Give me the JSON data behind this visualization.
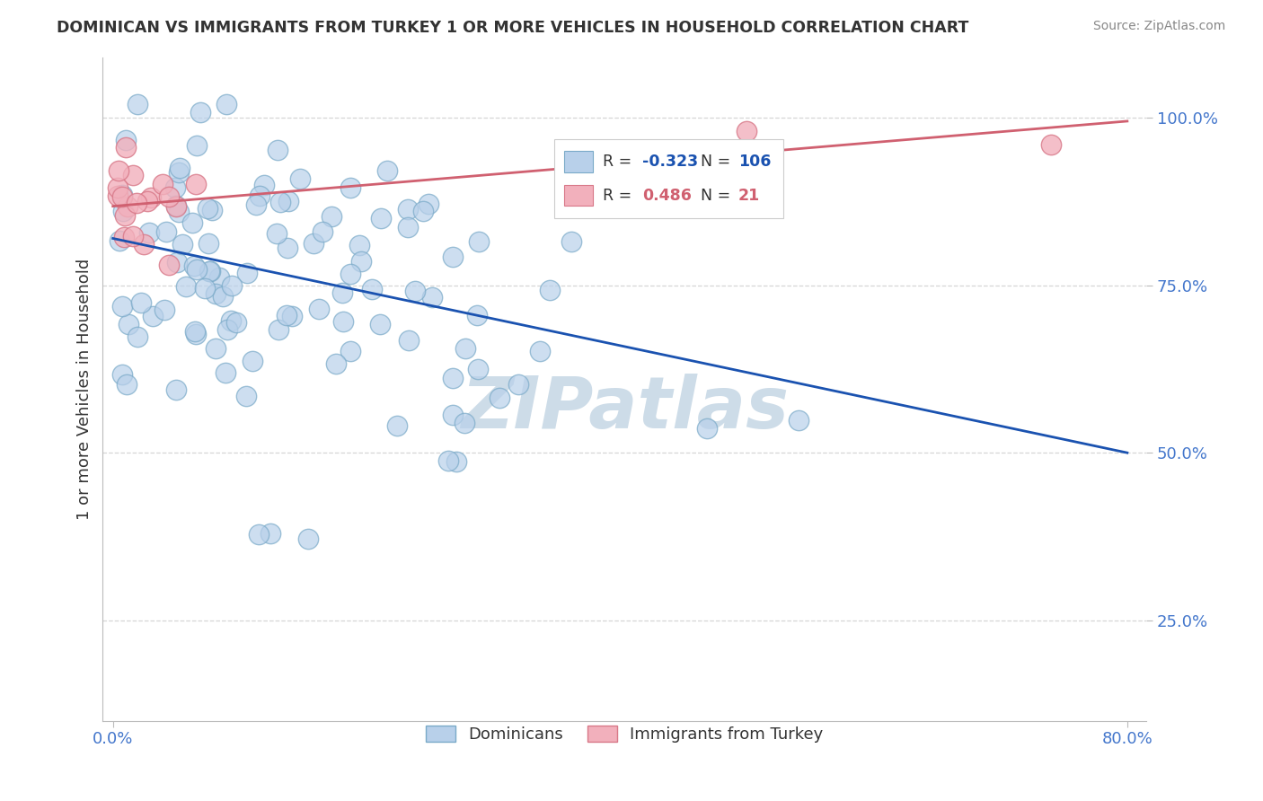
{
  "title": "DOMINICAN VS IMMIGRANTS FROM TURKEY 1 OR MORE VEHICLES IN HOUSEHOLD CORRELATION CHART",
  "source": "Source: ZipAtlas.com",
  "ylabel": "1 or more Vehicles in Household",
  "dominican_color": "#b8d0ea",
  "dominican_edge": "#7aaac8",
  "turkey_color": "#f2b0bc",
  "turkey_edge": "#d87888",
  "line_blue": "#1a52b0",
  "line_pink": "#d06070",
  "watermark_color": "#cddce8",
  "blue_line_x0": 0.0,
  "blue_line_x1": 0.8,
  "blue_line_y0": 0.82,
  "blue_line_y1": 0.5,
  "pink_line_x0": 0.0,
  "pink_line_x1": 0.8,
  "pink_line_y0": 0.868,
  "pink_line_y1": 0.995,
  "xlim_min": -0.008,
  "xlim_max": 0.815,
  "ylim_min": 0.1,
  "ylim_max": 1.09,
  "yticks": [
    0.25,
    0.5,
    0.75,
    1.0
  ],
  "ytick_labels": [
    "25.0%",
    "50.0%",
    "75.0%",
    "100.0%"
  ],
  "xtick_left": "0.0%",
  "xtick_right": "80.0%",
  "legend_r1_label": "R = ",
  "legend_r1_val": "-0.323",
  "legend_n1_label": "N = ",
  "legend_n1_val": "106",
  "legend_r2_label": "R =  ",
  "legend_r2_val": "0.486",
  "legend_n2_label": "N =  ",
  "legend_n2_val": "21",
  "tick_color": "#4477cc",
  "ylabel_color": "#333333",
  "title_color": "#333333",
  "source_color": "#888888",
  "grid_color": "#cccccc"
}
